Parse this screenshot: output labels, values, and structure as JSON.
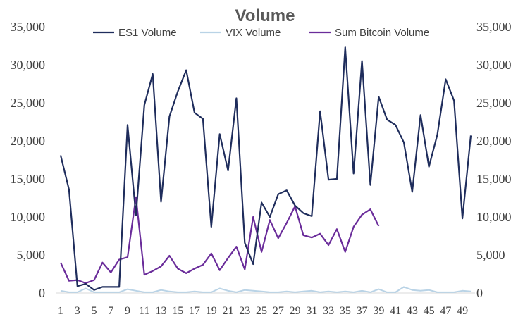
{
  "chart_data": {
    "type": "line",
    "title": "Volume",
    "xlabel": "",
    "ylabel": "",
    "ylim": [
      0,
      35000
    ],
    "y_ticks": [
      "0",
      "5,000",
      "10,000",
      "15,000",
      "20,000",
      "25,000",
      "30,000",
      "35,000"
    ],
    "y2_ticks": [
      "0",
      "5,000",
      "10,000",
      "15,000",
      "20,000",
      "25,000",
      "30,000",
      "35,000"
    ],
    "x": [
      1,
      2,
      3,
      4,
      5,
      6,
      7,
      8,
      9,
      10,
      11,
      12,
      13,
      14,
      15,
      16,
      17,
      18,
      19,
      20,
      21,
      22,
      23,
      24,
      25,
      26,
      27,
      28,
      29,
      30,
      31,
      32,
      33,
      34,
      35,
      36,
      37,
      38,
      39,
      40,
      41,
      42,
      43,
      44,
      45,
      46,
      47,
      48,
      49,
      50
    ],
    "x_tick_labels": [
      "1",
      "3",
      "5",
      "7",
      "9",
      "11",
      "13",
      "15",
      "17",
      "19",
      "21",
      "23",
      "25",
      "27",
      "29",
      "31",
      "33",
      "35",
      "37",
      "39",
      "41",
      "43",
      "45",
      "47",
      "49"
    ],
    "grid": false,
    "legend_position": "top",
    "series": [
      {
        "name": "ES1 Volume",
        "color": "#1f2d5c",
        "values": [
          18100,
          13600,
          900,
          1200,
          400,
          800,
          800,
          800,
          22100,
          10200,
          24700,
          28800,
          12000,
          23200,
          26500,
          29300,
          23700,
          22900,
          8700,
          20900,
          16100,
          25600,
          6600,
          3800,
          11900,
          10000,
          13000,
          13500,
          11500,
          10500,
          10100,
          23900,
          14900,
          15000,
          32300,
          15700,
          30500,
          14200,
          25800,
          22800,
          22100,
          19800,
          13300,
          23400,
          16600,
          20800,
          28100,
          25300,
          9800,
          20700
        ]
      },
      {
        "name": "VIX Volume",
        "color": "#b9d3e6",
        "values": [
          300,
          100,
          100,
          600,
          100,
          100,
          100,
          100,
          500,
          300,
          100,
          100,
          400,
          200,
          100,
          100,
          200,
          100,
          100,
          600,
          300,
          100,
          400,
          300,
          200,
          100,
          100,
          200,
          100,
          200,
          300,
          100,
          200,
          100,
          200,
          100,
          300,
          100,
          500,
          100,
          100,
          800,
          400,
          300,
          400,
          100,
          100,
          100,
          300,
          200
        ]
      },
      {
        "name": "Sum Bitcoin Volume",
        "color": "#6a2c9a",
        "values": [
          4000,
          1600,
          1700,
          1300,
          1700,
          4000,
          2700,
          4400,
          4700,
          12600,
          2400,
          2900,
          3500,
          4900,
          3200,
          2600,
          3200,
          3700,
          5200,
          3000,
          4600,
          6100,
          3100,
          10000,
          5400,
          9600,
          7200,
          9200,
          11400,
          7600,
          7300,
          7800,
          6300,
          8400,
          5400,
          8700,
          10300,
          11000,
          8800,
          null,
          null,
          null,
          null,
          null,
          null,
          null,
          null,
          null,
          null,
          null
        ]
      }
    ]
  }
}
